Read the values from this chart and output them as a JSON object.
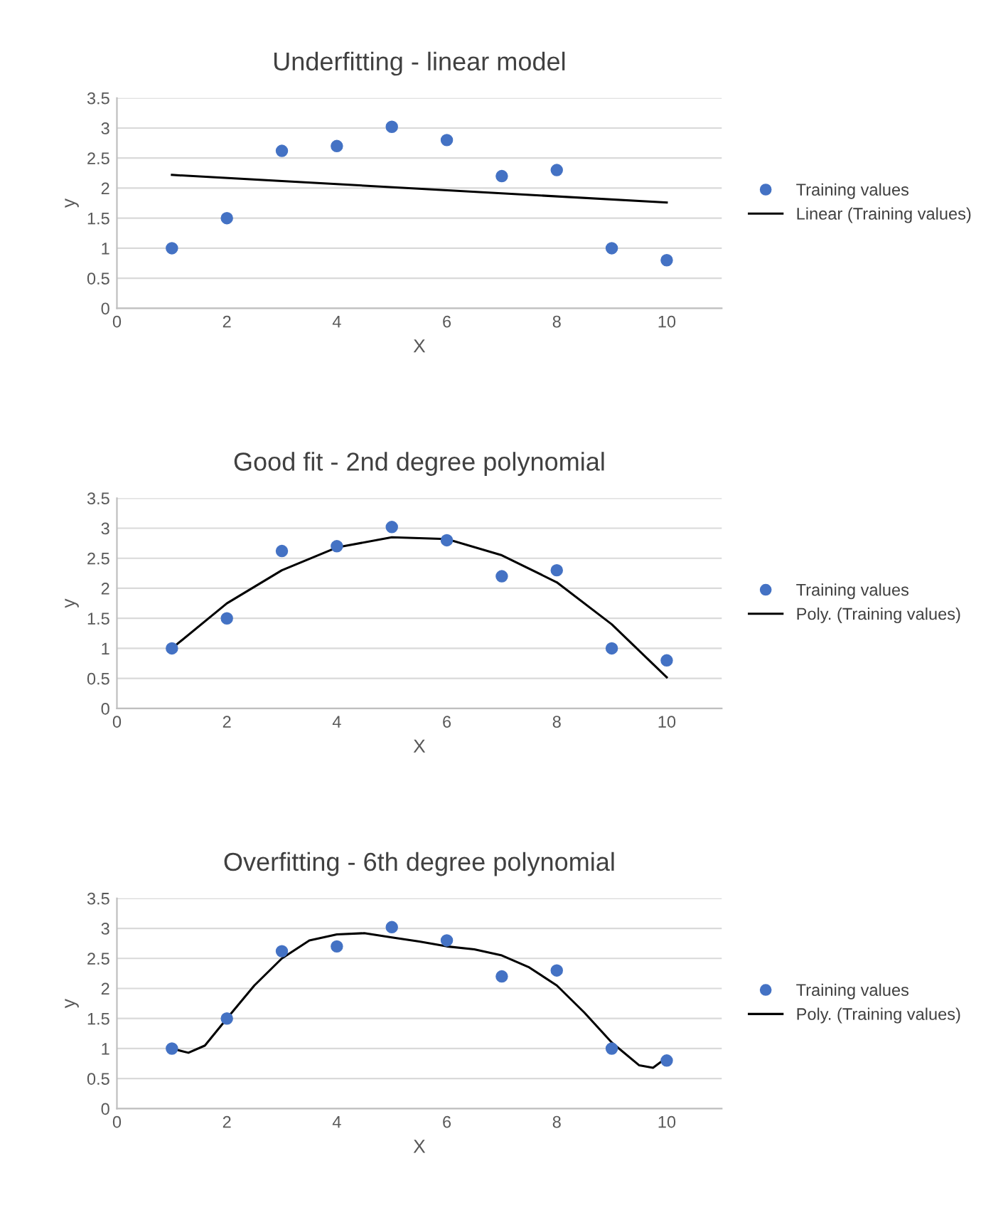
{
  "chart_data": [
    {
      "type": "scatter",
      "title": "Underfitting - linear model",
      "xlabel": "X",
      "ylabel": "y",
      "xlim": [
        0,
        11
      ],
      "xticks": [
        0,
        2,
        4,
        6,
        8,
        10
      ],
      "ylim": [
        0,
        3.5
      ],
      "yticks": [
        0,
        0.5,
        1,
        1.5,
        2,
        2.5,
        3,
        3.5
      ],
      "grid": "y",
      "legend": "right",
      "series": [
        {
          "name": "Training values",
          "marker": "circle",
          "color": "#4472c4",
          "x": [
            1,
            2,
            3,
            4,
            5,
            6,
            7,
            8,
            9,
            10
          ],
          "values": [
            1.0,
            1.5,
            2.62,
            2.7,
            3.02,
            2.8,
            2.2,
            2.3,
            1.0,
            0.8
          ]
        },
        {
          "name": "Linear (Training values)",
          "type": "line",
          "marker": "none",
          "color": "#000000",
          "x": [
            1,
            10
          ],
          "values": [
            2.22,
            1.76
          ]
        }
      ]
    },
    {
      "type": "scatter",
      "title": "Good fit - 2nd degree polynomial",
      "xlabel": "X",
      "ylabel": "y",
      "xlim": [
        0,
        11
      ],
      "xticks": [
        0,
        2,
        4,
        6,
        8,
        10
      ],
      "ylim": [
        0,
        3.5
      ],
      "yticks": [
        0,
        0.5,
        1,
        1.5,
        2,
        2.5,
        3,
        3.5
      ],
      "grid": "y",
      "legend": "right",
      "series": [
        {
          "name": "Training values",
          "marker": "circle",
          "color": "#4472c4",
          "x": [
            1,
            2,
            3,
            4,
            5,
            6,
            7,
            8,
            9,
            10
          ],
          "values": [
            1.0,
            1.5,
            2.62,
            2.7,
            3.02,
            2.8,
            2.2,
            2.3,
            1.0,
            0.8
          ]
        },
        {
          "name": "Poly. (Training values)",
          "type": "line",
          "marker": "none",
          "color": "#000000",
          "x": [
            1,
            2,
            3,
            4,
            5,
            6,
            7,
            8,
            9,
            10
          ],
          "values": [
            1.0,
            1.75,
            2.3,
            2.68,
            2.85,
            2.82,
            2.55,
            2.1,
            1.4,
            0.52
          ]
        }
      ]
    },
    {
      "type": "scatter",
      "title": "Overfitting - 6th degree polynomial",
      "xlabel": "X",
      "ylabel": "y",
      "xlim": [
        0,
        11
      ],
      "xticks": [
        0,
        2,
        4,
        6,
        8,
        10
      ],
      "ylim": [
        0,
        3.5
      ],
      "yticks": [
        0,
        0.5,
        1,
        1.5,
        2,
        2.5,
        3,
        3.5
      ],
      "grid": "y",
      "legend": "right",
      "series": [
        {
          "name": "Training values",
          "marker": "circle",
          "color": "#4472c4",
          "x": [
            1,
            2,
            3,
            4,
            5,
            6,
            7,
            8,
            9,
            10
          ],
          "values": [
            1.0,
            1.5,
            2.62,
            2.7,
            3.02,
            2.8,
            2.2,
            2.3,
            1.0,
            0.8
          ]
        },
        {
          "name": "Poly. (Training values)",
          "type": "line",
          "marker": "none",
          "color": "#000000",
          "x": [
            1,
            1.3,
            1.6,
            2,
            2.5,
            3,
            3.5,
            4,
            4.5,
            5,
            5.5,
            6,
            6.5,
            7,
            7.5,
            8,
            8.5,
            9,
            9.5,
            9.75,
            10
          ],
          "values": [
            1.0,
            0.93,
            1.05,
            1.5,
            2.05,
            2.5,
            2.8,
            2.9,
            2.92,
            2.85,
            2.78,
            2.7,
            2.65,
            2.55,
            2.35,
            2.05,
            1.6,
            1.1,
            0.72,
            0.68,
            0.85
          ]
        }
      ]
    }
  ]
}
